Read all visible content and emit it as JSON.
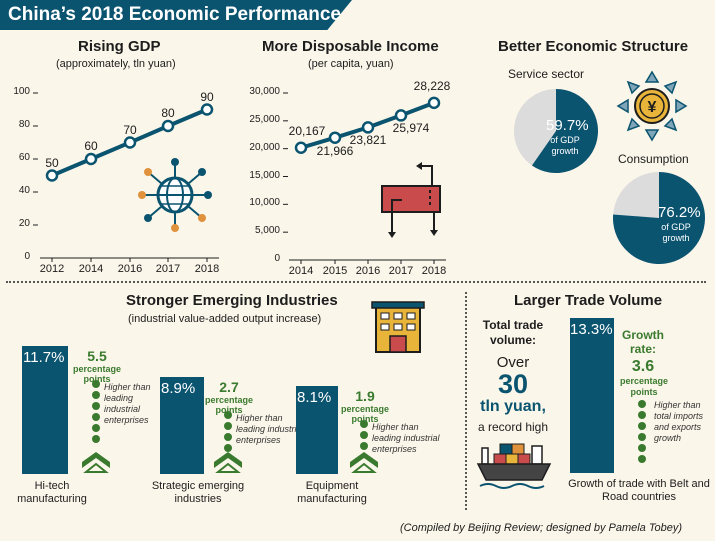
{
  "page": {
    "title": "China’s 2018 Economic Performance",
    "credit": "(Compiled by Beijing Review; designed by Pamela Tobey)"
  },
  "gdp": {
    "title": "Rising GDP",
    "subtitle": "(approximately, tln yuan)",
    "yticks": [
      "100",
      "80",
      "60",
      "40",
      "20",
      "0"
    ]
  },
  "income": {
    "title": "More Disposable Income",
    "subtitle": "(per capita, yuan)",
    "yticks": [
      "30,000",
      "25,000",
      "20,000",
      "15,000",
      "10,000",
      "5,000",
      "0"
    ]
  },
  "structure": {
    "title": "Better Economic Structure",
    "service_label": "Service sector",
    "service_pct": "59.7%",
    "service_note": "of GDP growth",
    "consumption_label": "Consumption",
    "consumption_pct": "76.2%",
    "consumption_note": "of GDP growth"
  },
  "emerging": {
    "title": "Stronger Emerging Industries",
    "subtitle": "(industrial value-added output increase)",
    "items": [
      {
        "pct": "11.7%",
        "pp": "5.5",
        "pp_label": "percentage points",
        "note": "Higher than leading industrial enterprises",
        "label": "Hi-tech manufacturing"
      },
      {
        "pct": "8.9%",
        "pp": "2.7",
        "pp_label": "percentage points",
        "note": "Higher than leading industrial enterprises",
        "label": "Strategic emerging industries"
      },
      {
        "pct": "8.1%",
        "pp": "1.9",
        "pp_label": "percentage points",
        "note": "Higher than leading industrial enterprises",
        "label": "Equipment manufacturing"
      }
    ]
  },
  "trade": {
    "title": "Larger Trade Volume",
    "total_label": "Total trade volume:",
    "over": "Over",
    "big_number": "30",
    "unit": "tln yuan,",
    "record": "a record high",
    "belt_pct": "13.3%",
    "growth_label": "Growth rate:",
    "growth_value": "3.6",
    "growth_unit": "percentage points",
    "growth_note": "Higher than total imports and exports growth",
    "belt_label": "Growth of trade with Belt and Road countries"
  },
  "colors": {
    "primary": "#0b5470",
    "green": "#3a7a2e",
    "light_gray": "#dcdcdc",
    "background": "#fbf6ea",
    "accent_red": "#c94b4b",
    "accent_gold": "#e8b43a",
    "accent_orange": "#e0913c"
  },
  "chart_data": [
    {
      "type": "line",
      "title": "Rising GDP",
      "subtitle": "(approximately, tln yuan)",
      "x": [
        "2012",
        "2014",
        "2016",
        "2017",
        "2018"
      ],
      "values": [
        50,
        60,
        70,
        80,
        90
      ],
      "ylim": [
        0,
        100
      ]
    },
    {
      "type": "line",
      "title": "More Disposable Income",
      "subtitle": "(per capita, yuan)",
      "x": [
        "2014",
        "2015",
        "2016",
        "2017",
        "2018"
      ],
      "values": [
        20167,
        21966,
        23821,
        25974,
        28228
      ],
      "value_labels": [
        "20,167",
        "21,966",
        "23,821",
        "25,974",
        "28,228"
      ],
      "ylim": [
        0,
        30000
      ]
    },
    {
      "type": "pie",
      "title": "Service sector",
      "values": [
        59.7,
        40.3
      ],
      "labels": [
        "59.7%",
        ""
      ]
    },
    {
      "type": "pie",
      "title": "Consumption",
      "values": [
        76.2,
        23.8
      ],
      "labels": [
        "76.2%",
        ""
      ]
    },
    {
      "type": "bar",
      "title": "Stronger Emerging Industries",
      "categories": [
        "Hi-tech manufacturing",
        "Strategic emerging industries",
        "Equipment manufacturing"
      ],
      "values": [
        11.7,
        8.9,
        8.1
      ]
    },
    {
      "type": "bar",
      "title": "Larger Trade Volume",
      "categories": [
        "Growth of trade with Belt and Road countries"
      ],
      "values": [
        13.3
      ]
    }
  ]
}
